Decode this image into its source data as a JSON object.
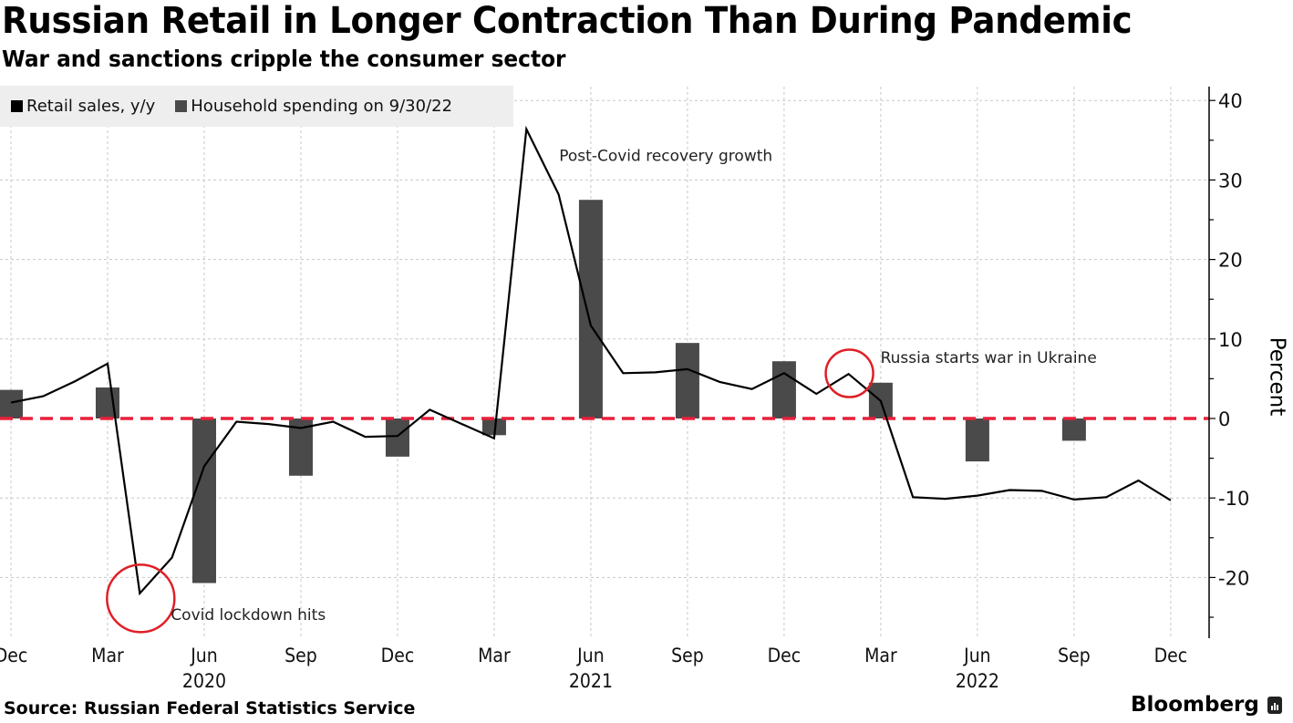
{
  "header": {
    "title": "Russian Retail in Longer Contraction Than During Pandemic",
    "subtitle": "War and sanctions cripple the consumer sector"
  },
  "legend": [
    {
      "label": "Retail sales, y/y",
      "color": "#000000"
    },
    {
      "label": "Household spending on 9/30/22",
      "color": "#4a4a4a"
    }
  ],
  "footer": {
    "source": "Source: Russian Federal Statistics Service",
    "brand": "Bloomberg"
  },
  "colors": {
    "line": "#000000",
    "bar": "#4a4a4a",
    "zero_line": "#e8203a",
    "highlight_circle": "#e01f26",
    "grid": "#c8c8c8"
  },
  "chart_data": {
    "type": "line+bar",
    "title": "Russian Retail in Longer Contraction Than During Pandemic",
    "subtitle": "War and sanctions cripple the consumer sector",
    "xlabel": "",
    "ylabel": "Percent",
    "ylim": [
      -27,
      42
    ],
    "yticks": [
      -20,
      -10,
      0,
      10,
      20,
      30,
      40
    ],
    "grid": true,
    "legend_position": "top-left",
    "x_months": [
      "2019-12",
      "2020-01",
      "2020-02",
      "2020-03",
      "2020-04",
      "2020-05",
      "2020-06",
      "2020-07",
      "2020-08",
      "2020-09",
      "2020-10",
      "2020-11",
      "2020-12",
      "2021-01",
      "2021-02",
      "2021-03",
      "2021-04",
      "2021-05",
      "2021-06",
      "2021-07",
      "2021-08",
      "2021-09",
      "2021-10",
      "2021-11",
      "2021-12",
      "2022-01",
      "2022-02",
      "2022-03",
      "2022-04",
      "2022-05",
      "2022-06",
      "2022-07",
      "2022-08",
      "2022-09",
      "2022-10",
      "2022-11",
      "2022-12"
    ],
    "xticks": [
      {
        "month": "2019-12",
        "label": "Dec",
        "year": ""
      },
      {
        "month": "2020-03",
        "label": "Mar",
        "year": ""
      },
      {
        "month": "2020-06",
        "label": "Jun",
        "year": "2020"
      },
      {
        "month": "2020-09",
        "label": "Sep",
        "year": ""
      },
      {
        "month": "2020-12",
        "label": "Dec",
        "year": ""
      },
      {
        "month": "2021-03",
        "label": "Mar",
        "year": ""
      },
      {
        "month": "2021-06",
        "label": "Jun",
        "year": "2021"
      },
      {
        "month": "2021-09",
        "label": "Sep",
        "year": ""
      },
      {
        "month": "2021-12",
        "label": "Dec",
        "year": ""
      },
      {
        "month": "2022-03",
        "label": "Mar",
        "year": ""
      },
      {
        "month": "2022-06",
        "label": "Jun",
        "year": "2022"
      },
      {
        "month": "2022-09",
        "label": "Sep",
        "year": ""
      },
      {
        "month": "2022-12",
        "label": "Dec",
        "year": ""
      }
    ],
    "series": [
      {
        "name": "Retail sales, y/y",
        "type": "line",
        "values": [
          2.0,
          2.8,
          4.7,
          6.9,
          -22.0,
          -17.5,
          -6.0,
          -0.4,
          -0.7,
          -1.2,
          -0.4,
          -2.3,
          -2.2,
          1.1,
          -0.7,
          -2.5,
          36.4,
          28.2,
          11.7,
          5.7,
          5.8,
          6.2,
          4.6,
          3.7,
          5.7,
          3.1,
          5.6,
          2.2,
          -9.9,
          -10.1,
          -9.7,
          -9.0,
          -9.1,
          -10.2,
          -9.9,
          -7.8,
          -10.3
        ]
      },
      {
        "name": "Household spending on 9/30/22",
        "type": "bar",
        "months": [
          "2019-12",
          "2020-03",
          "2020-06",
          "2020-09",
          "2020-12",
          "2021-03",
          "2021-06",
          "2021-09",
          "2021-12",
          "2022-03",
          "2022-06",
          "2022-09"
        ],
        "values": [
          3.6,
          3.9,
          -20.7,
          -7.2,
          -4.8,
          -2.1,
          27.5,
          9.5,
          7.2,
          4.5,
          -5.4,
          -2.8
        ]
      }
    ],
    "reference_lines": [
      {
        "y": 0,
        "style": "dashed",
        "color": "#e8203a"
      }
    ],
    "annotations": [
      {
        "text": "Covid lockdown hits",
        "month": "2020-04",
        "value": -22.0,
        "circle": true
      },
      {
        "text": "Post-Covid recovery growth",
        "month": "2021-04",
        "value": 36.4,
        "circle": false
      },
      {
        "text": "Russia starts war in Ukraine",
        "month": "2022-02",
        "value": 5.6,
        "circle": true
      }
    ]
  }
}
